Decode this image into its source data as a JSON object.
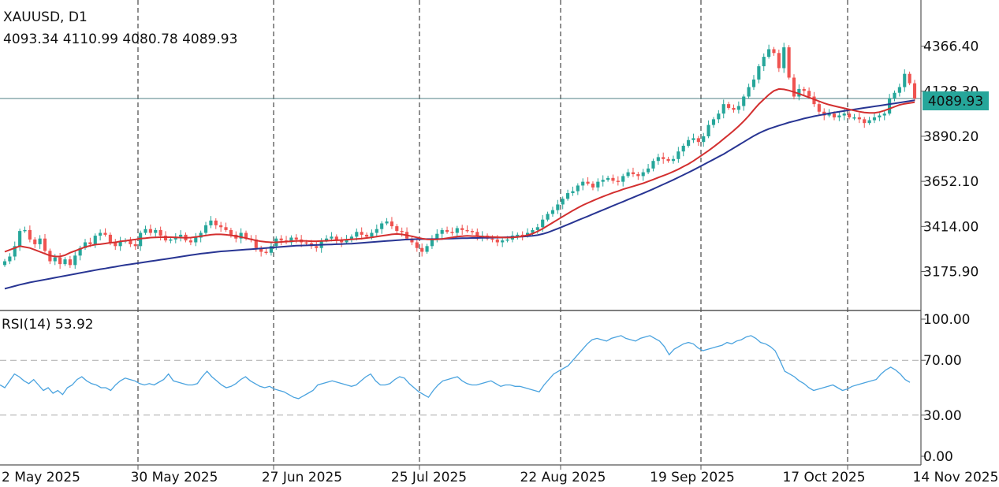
{
  "symbol_title": "XAUUSD, D1",
  "ohlc_text": "4093.34 4110.99 4080.78 4089.93",
  "rsi_title": "RSI(14) 53.92",
  "price_tag": "4089.93",
  "colors": {
    "up": "#26a69a",
    "down": "#ef5350",
    "ma_fast": "#d32f2f",
    "ma_slow": "#283593",
    "rsi": "#4aa3df",
    "grid": "#222222",
    "tag_bg": "#26a69a"
  },
  "chart_data": [
    {
      "type": "candlestick",
      "title": "XAUUSD, D1",
      "x_tick_labels": [
        "2 May 2025",
        "30 May 2025",
        "27 Jun 2025",
        "25 Jul 2025",
        "22 Aug 2025",
        "19 Sep 2025",
        "17 Oct 2025",
        "14 Nov 2025"
      ],
      "y_tick_labels": [
        "4366.40",
        "4128.30",
        "3890.20",
        "3652.10",
        "3414.00",
        "3175.90"
      ],
      "y_ticks": [
        4366.4,
        4128.3,
        3890.2,
        3652.1,
        3414.0,
        3175.9
      ],
      "ylim": [
        2970,
        4610
      ],
      "last_price": 4089.93,
      "last_ohlc": {
        "open": 4093.34,
        "high": 4110.99,
        "low": 4080.78,
        "close": 4089.93
      },
      "close": [
        3230,
        3255,
        3310,
        3390,
        3395,
        3345,
        3320,
        3350,
        3285,
        3230,
        3250,
        3215,
        3240,
        3210,
        3260,
        3300,
        3330,
        3320,
        3365,
        3380,
        3370,
        3330,
        3310,
        3335,
        3340,
        3320,
        3310,
        3380,
        3400,
        3380,
        3395,
        3365,
        3340,
        3345,
        3360,
        3370,
        3340,
        3330,
        3355,
        3380,
        3420,
        3445,
        3420,
        3410,
        3395,
        3370,
        3350,
        3380,
        3350,
        3345,
        3300,
        3280,
        3275,
        3310,
        3350,
        3340,
        3330,
        3355,
        3345,
        3330,
        3325,
        3310,
        3300,
        3340,
        3350,
        3360,
        3340,
        3330,
        3345,
        3360,
        3385,
        3370,
        3360,
        3380,
        3400,
        3430,
        3440,
        3415,
        3390,
        3385,
        3350,
        3330,
        3300,
        3280,
        3310,
        3350,
        3375,
        3395,
        3385,
        3380,
        3405,
        3395,
        3390,
        3385,
        3360,
        3365,
        3350,
        3345,
        3330,
        3340,
        3345,
        3365,
        3370,
        3365,
        3380,
        3395,
        3410,
        3450,
        3480,
        3500,
        3530,
        3560,
        3590,
        3600,
        3630,
        3650,
        3640,
        3620,
        3650,
        3660,
        3670,
        3655,
        3650,
        3680,
        3700,
        3690,
        3680,
        3700,
        3720,
        3760,
        3780,
        3770,
        3760,
        3770,
        3810,
        3840,
        3870,
        3880,
        3860,
        3890,
        3950,
        3980,
        4010,
        4060,
        4040,
        4030,
        4050,
        4100,
        4150,
        4190,
        4260,
        4310,
        4350,
        4330,
        4250,
        4360,
        4200,
        4100,
        4140,
        4130,
        4100,
        4060,
        4020,
        4000,
        4010,
        3990,
        4000,
        4010,
        3990,
        3990,
        3980,
        3960,
        3975,
        3990,
        4000,
        4010,
        4090,
        4120,
        4150,
        4220,
        4170,
        4089.93
      ],
      "ma_fast": [
        3280,
        3290,
        3300,
        3310,
        3305,
        3300,
        3290,
        3280,
        3270,
        3260,
        3255,
        3255,
        3262,
        3275,
        3285,
        3295,
        3305,
        3312,
        3318,
        3320,
        3324,
        3328,
        3330,
        3335,
        3338,
        3342,
        3345,
        3350,
        3352,
        3355,
        3356,
        3357,
        3357,
        3357,
        3356,
        3355,
        3354,
        3355,
        3358,
        3362,
        3366,
        3370,
        3372,
        3372,
        3370,
        3367,
        3363,
        3358,
        3352,
        3346,
        3340,
        3335,
        3332,
        3330,
        3330,
        3332,
        3334,
        3336,
        3337,
        3338,
        3337,
        3336,
        3336,
        3337,
        3338,
        3340,
        3341,
        3342,
        3344,
        3346,
        3348,
        3350,
        3353,
        3356,
        3360,
        3364,
        3368,
        3372,
        3374,
        3372,
        3367,
        3362,
        3356,
        3350,
        3346,
        3345,
        3346,
        3348,
        3352,
        3356,
        3360,
        3362,
        3364,
        3363,
        3362,
        3360,
        3359,
        3358,
        3357,
        3356,
        3355,
        3356,
        3358,
        3362,
        3368,
        3376,
        3388,
        3402,
        3418,
        3434,
        3450,
        3466,
        3482,
        3498,
        3512,
        3526,
        3538,
        3550,
        3561,
        3572,
        3582,
        3592,
        3600,
        3610,
        3618,
        3626,
        3634,
        3642,
        3652,
        3662,
        3672,
        3682,
        3692,
        3704,
        3716,
        3730,
        3744,
        3760,
        3778,
        3796,
        3814,
        3834,
        3854,
        3876,
        3898,
        3920,
        3944,
        3970,
        3998,
        4030,
        4060,
        4085,
        4110,
        4130,
        4140,
        4138,
        4132,
        4124,
        4115,
        4105,
        4095,
        4085,
        4075,
        4065,
        4057,
        4050,
        4044,
        4038,
        4032,
        4026,
        4020,
        4016,
        4014,
        4014,
        4018,
        4026,
        4036,
        4046,
        4056,
        4062,
        4066,
        4070
      ],
      "ma_slow": [
        3085,
        3092,
        3099,
        3106,
        3112,
        3118,
        3123,
        3128,
        3133,
        3138,
        3143,
        3148,
        3153,
        3158,
        3163,
        3168,
        3173,
        3178,
        3183,
        3188,
        3192,
        3197,
        3201,
        3206,
        3210,
        3214,
        3218,
        3222,
        3226,
        3230,
        3234,
        3238,
        3242,
        3246,
        3250,
        3254,
        3258,
        3262,
        3266,
        3270,
        3273,
        3276,
        3279,
        3282,
        3284,
        3286,
        3288,
        3290,
        3292,
        3294,
        3296,
        3298,
        3300,
        3302,
        3304,
        3306,
        3308,
        3310,
        3312,
        3313,
        3314,
        3315,
        3316,
        3317,
        3318,
        3319,
        3320,
        3321,
        3322,
        3323,
        3325,
        3327,
        3329,
        3331,
        3333,
        3335,
        3337,
        3339,
        3341,
        3343,
        3345,
        3346,
        3347,
        3347,
        3347,
        3347,
        3347,
        3348,
        3349,
        3350,
        3351,
        3352,
        3352,
        3353,
        3353,
        3354,
        3354,
        3355,
        3355,
        3356,
        3357,
        3358,
        3359,
        3360,
        3362,
        3364,
        3368,
        3374,
        3382,
        3392,
        3402,
        3413,
        3424,
        3435,
        3446,
        3457,
        3468,
        3479,
        3490,
        3501,
        3512,
        3523,
        3534,
        3545,
        3556,
        3567,
        3578,
        3589,
        3600,
        3612,
        3624,
        3636,
        3648,
        3660,
        3673,
        3686,
        3699,
        3712,
        3726,
        3740,
        3754,
        3768,
        3782,
        3796,
        3812,
        3828,
        3844,
        3860,
        3876,
        3892,
        3906,
        3918,
        3929,
        3938,
        3947,
        3955,
        3963,
        3970,
        3977,
        3984,
        3990,
        3996,
        4001,
        4006,
        4011,
        4016,
        4020,
        4024,
        4028,
        4032,
        4036,
        4040,
        4044,
        4048,
        4052,
        4056,
        4060,
        4064,
        4068,
        4072,
        4076,
        4080
      ]
    },
    {
      "type": "line",
      "title": "RSI(14) 53.92",
      "y_tick_labels": [
        "100.00",
        "70.00",
        "30.00",
        "0.00"
      ],
      "y_ticks": [
        100,
        70,
        30,
        0
      ],
      "ylim": [
        0,
        100
      ],
      "levels": [
        70,
        30
      ],
      "values": [
        52,
        50,
        55,
        60,
        58,
        55,
        53,
        56,
        52,
        48,
        50,
        46,
        48,
        45,
        50,
        52,
        56,
        58,
        55,
        53,
        52,
        50,
        50,
        48,
        52,
        55,
        57,
        56,
        55,
        53,
        52,
        53,
        52,
        54,
        56,
        60,
        55,
        54,
        53,
        52,
        52,
        53,
        58,
        62,
        58,
        55,
        52,
        50,
        51,
        53,
        56,
        58,
        55,
        53,
        51,
        50,
        51,
        49,
        48,
        47,
        45,
        43,
        42,
        44,
        46,
        48,
        52,
        53,
        54,
        55,
        54,
        53,
        52,
        51,
        52,
        55,
        58,
        60,
        55,
        52,
        52,
        53,
        56,
        58,
        57,
        53,
        50,
        47,
        45,
        43,
        48,
        52,
        55,
        56,
        57,
        58,
        55,
        53,
        52,
        52,
        53,
        54,
        55,
        53,
        51,
        52,
        52,
        51,
        51,
        50,
        49,
        48,
        47,
        52,
        56,
        60,
        62,
        64,
        66,
        70,
        74,
        78,
        82,
        85,
        86,
        85,
        84,
        86,
        87,
        88,
        86,
        85,
        84,
        86,
        87,
        88,
        86,
        84,
        80,
        74,
        78,
        80,
        82,
        83,
        82,
        79,
        77,
        78,
        79,
        80,
        81,
        83,
        82,
        84,
        85,
        87,
        88,
        86,
        83,
        82,
        80,
        77,
        70,
        62,
        60,
        58,
        55,
        53,
        50,
        48,
        49,
        50,
        51,
        52,
        50,
        48,
        49,
        51,
        52,
        53,
        54,
        55,
        56,
        60,
        63,
        65,
        63,
        60,
        56,
        53.92
      ]
    }
  ]
}
